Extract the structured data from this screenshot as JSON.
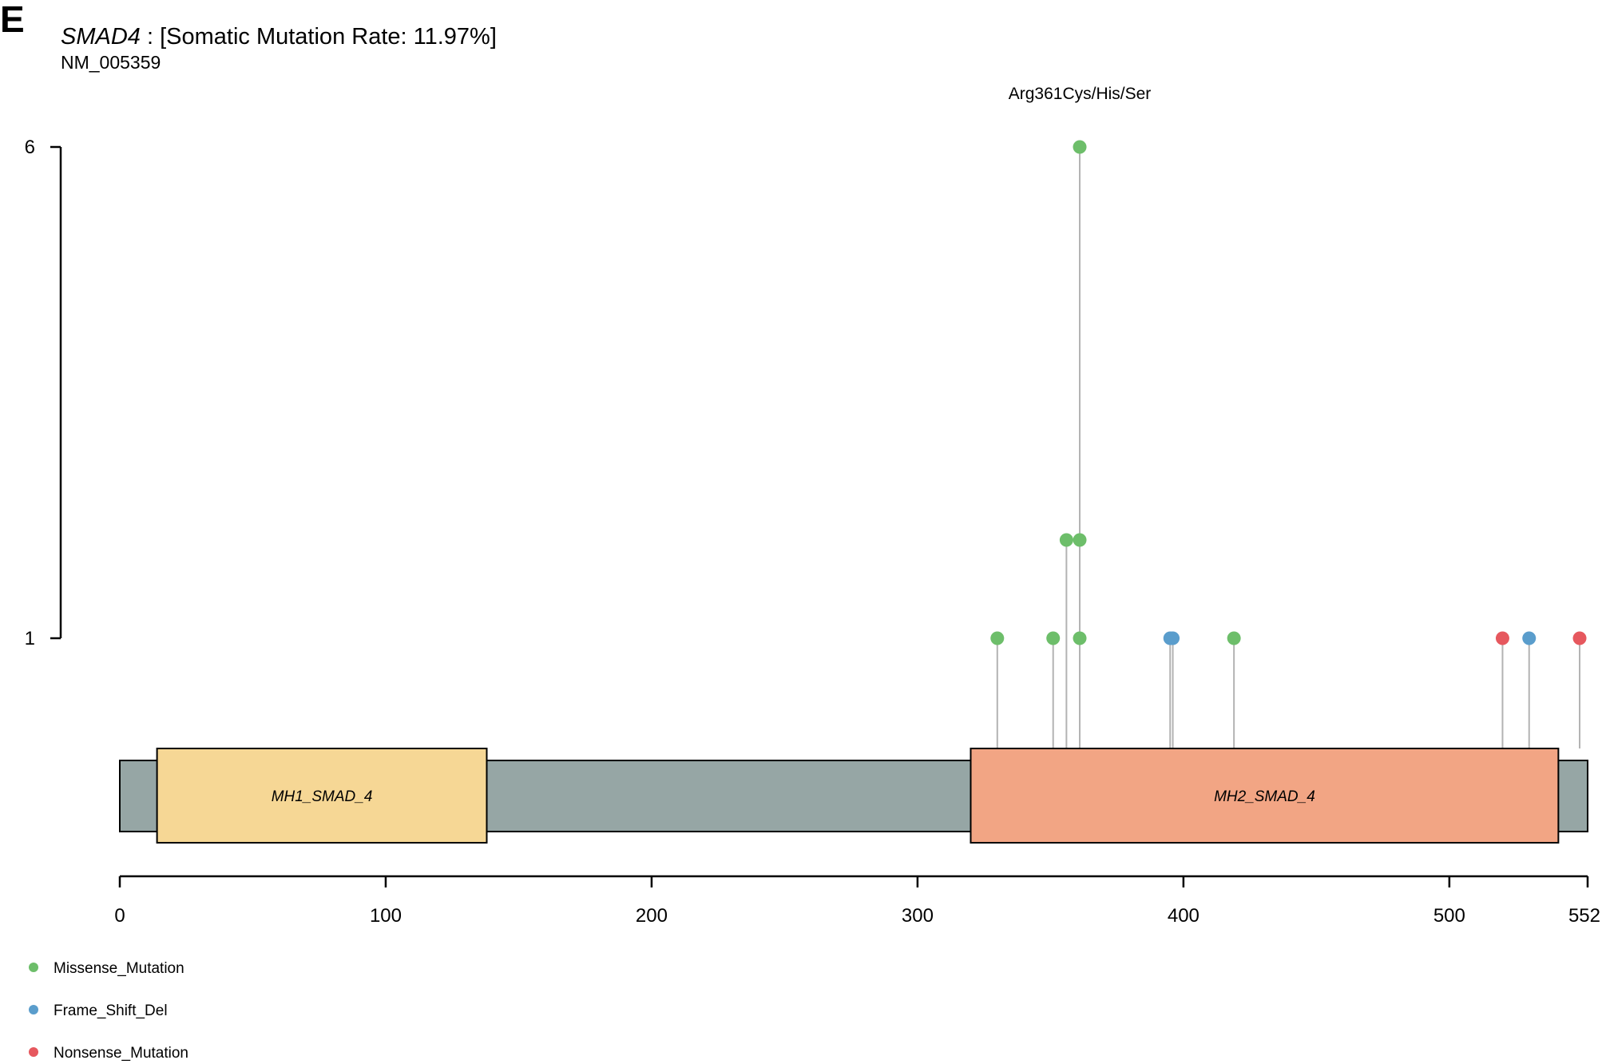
{
  "panel_label": "E",
  "header": {
    "gene": "SMAD4",
    "rate_text": " : [Somatic Mutation Rate: 11.97%]",
    "transcript": "NM_005359"
  },
  "chart_data": {
    "type": "lollipop",
    "protein_length": 552,
    "x_ticks": [
      0,
      100,
      200,
      300,
      400,
      500,
      552
    ],
    "y_ticks": [
      1,
      6
    ],
    "xlim": [
      0,
      552
    ],
    "domains": [
      {
        "name": "MH1_SMAD_4",
        "start": 14,
        "end": 138,
        "color": "#F6D795"
      },
      {
        "name": "MH2_SMAD_4",
        "start": 320,
        "end": 541,
        "color": "#F2A584"
      }
    ],
    "backbone_color": "#96A6A5",
    "stem_color": "#B3B3B3",
    "levels": [
      1,
      1,
      2,
      6
    ],
    "mutations": [
      {
        "position": 330,
        "count": 1,
        "type": "Missense_Mutation"
      },
      {
        "position": 351,
        "count": 1,
        "type": "Missense_Mutation"
      },
      {
        "position": 356,
        "count": 2,
        "type": "Missense_Mutation"
      },
      {
        "position": 361,
        "count": 1,
        "type": "Missense_Mutation"
      },
      {
        "position": 361,
        "count": 2,
        "type": "Missense_Mutation"
      },
      {
        "position": 361,
        "count": 6,
        "type": "Missense_Mutation",
        "label": "Arg361Cys/His/Ser"
      },
      {
        "position": 395,
        "count": 1,
        "type": "Frame_Shift_Del"
      },
      {
        "position": 396,
        "count": 1,
        "type": "Frame_Shift_Del"
      },
      {
        "position": 419,
        "count": 1,
        "type": "Missense_Mutation"
      },
      {
        "position": 520,
        "count": 1,
        "type": "Nonsense_Mutation"
      },
      {
        "position": 530,
        "count": 1,
        "type": "Frame_Shift_Del"
      },
      {
        "position": 549,
        "count": 1,
        "type": "Nonsense_Mutation"
      }
    ],
    "legend": [
      {
        "name": "Missense_Mutation",
        "color": "#6DBE6A"
      },
      {
        "name": "Frame_Shift_Del",
        "color": "#5A9DCC"
      },
      {
        "name": "Nonsense_Mutation",
        "color": "#E6585E"
      }
    ]
  }
}
